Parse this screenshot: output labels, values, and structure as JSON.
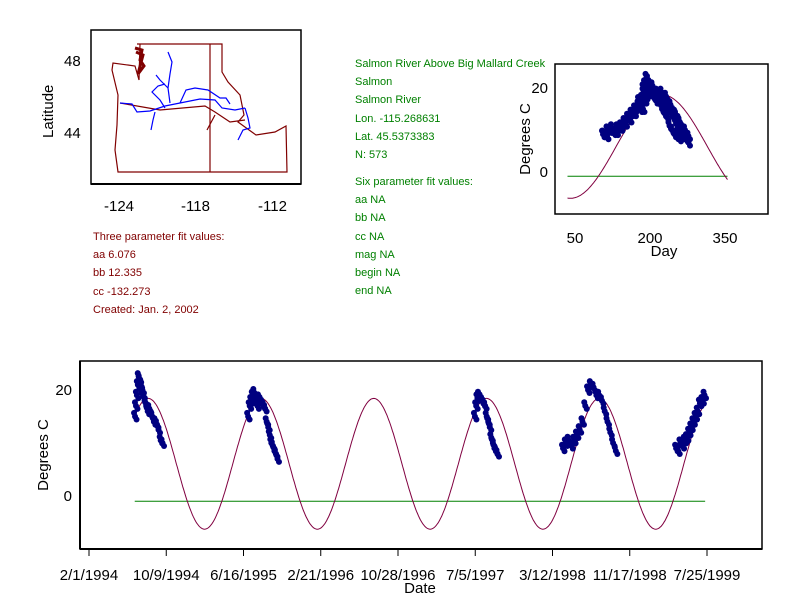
{
  "map": {
    "ylabel": "Latitude",
    "xticks": [
      "-124",
      "-118",
      "-112"
    ],
    "yticks": [
      "48",
      "44"
    ],
    "colors": {
      "border": "#800000",
      "river": "#0000ff"
    }
  },
  "site": {
    "lines": [
      "Salmon River Above Big Mallard Creek",
      "Salmon",
      "Salmon River",
      "Lon. -115.268631",
      "Lat. 45.5373383",
      "N: 573"
    ]
  },
  "six_fit": {
    "title": "Six parameter fit values:",
    "lines": [
      "aa NA",
      "bb NA",
      "cc NA",
      "mag NA",
      "begin NA",
      "end NA"
    ]
  },
  "three_fit": {
    "title": "Three parameter fit values:",
    "lines": [
      "aa 6.076",
      "bb 12.335",
      "cc -132.273",
      "Created:   Jan. 2, 2002"
    ]
  },
  "chart_data": [
    {
      "type": "scatter",
      "name": "day-of-year",
      "xlabel": "Day",
      "ylabel": "Degrees C",
      "xticks": [
        50,
        200,
        350
      ],
      "yticks": [
        0,
        20
      ],
      "xlim": [
        0,
        380
      ],
      "ylim": [
        -10,
        25
      ],
      "fit": {
        "aa": 6.076,
        "bb": 12.335,
        "cc": -132.273
      },
      "reference_line": -1,
      "colors": {
        "points": "#000080",
        "fit": "#800040",
        "reference": "#008000"
      }
    },
    {
      "type": "scatter",
      "name": "time-series",
      "xlabel": "Date",
      "ylabel": "Degrees C",
      "start_day_of_year": 32,
      "xtick_days": [
        0,
        250,
        500,
        750,
        1000,
        1250,
        1500,
        1750,
        2000
      ],
      "xtick_labels": [
        "2/1/1994",
        "10/9/1994",
        "6/16/1995",
        "2/21/1996",
        "10/28/1996",
        "7/5/1997",
        "3/12/1998",
        "11/17/1998",
        "7/25/1999"
      ],
      "yticks": [
        0,
        20
      ],
      "ylim": [
        -10,
        27
      ],
      "fit_range_days": [
        148,
        1994
      ],
      "points": [
        [
          149,
          15
        ],
        [
          152,
          17
        ],
        [
          155,
          19
        ],
        [
          158,
          21
        ],
        [
          161,
          22.5
        ],
        [
          164,
          22
        ],
        [
          167,
          21
        ],
        [
          170,
          19.5
        ],
        [
          173,
          20
        ],
        [
          176,
          19
        ],
        [
          180,
          18
        ],
        [
          185,
          17
        ],
        [
          190,
          16
        ],
        [
          195,
          16.5
        ],
        [
          200,
          15.5
        ],
        [
          205,
          15
        ],
        [
          210,
          14
        ],
        [
          215,
          14
        ],
        [
          220,
          13.5
        ],
        [
          225,
          12.5
        ],
        [
          232,
          10.5
        ],
        [
          238,
          10
        ],
        [
          515,
          15
        ],
        [
          520,
          17
        ],
        [
          525,
          18
        ],
        [
          530,
          19
        ],
        [
          535,
          19.5
        ],
        [
          540,
          18
        ],
        [
          545,
          17
        ],
        [
          550,
          18.5
        ],
        [
          555,
          18
        ],
        [
          560,
          17.5
        ],
        [
          565,
          17
        ],
        [
          570,
          16.5
        ],
        [
          575,
          14
        ],
        [
          580,
          13
        ],
        [
          585,
          11.5
        ],
        [
          590,
          10
        ],
        [
          595,
          9.5
        ],
        [
          600,
          8.5
        ],
        [
          605,
          8
        ],
        [
          610,
          7
        ],
        [
          1249,
          15
        ],
        [
          1253,
          17
        ],
        [
          1257,
          18.5
        ],
        [
          1262,
          19
        ],
        [
          1267,
          18.5
        ],
        [
          1272,
          18
        ],
        [
          1277,
          17.5
        ],
        [
          1282,
          17
        ],
        [
          1287,
          15
        ],
        [
          1292,
          14
        ],
        [
          1297,
          13
        ],
        [
          1302,
          11
        ],
        [
          1307,
          10
        ],
        [
          1312,
          9
        ],
        [
          1317,
          8.5
        ],
        [
          1322,
          8
        ],
        [
          1534,
          9
        ],
        [
          1543,
          10
        ],
        [
          1552,
          10.5
        ],
        [
          1561,
          9.5
        ],
        [
          1570,
          10.5
        ],
        [
          1579,
          11.5
        ],
        [
          1588,
          12.5
        ],
        [
          1597,
          14
        ],
        [
          1606,
          17
        ],
        [
          1615,
          20
        ],
        [
          1624,
          21
        ],
        [
          1633,
          20.5
        ],
        [
          1642,
          19
        ],
        [
          1651,
          19
        ],
        [
          1660,
          18
        ],
        [
          1669,
          16
        ],
        [
          1678,
          14
        ],
        [
          1687,
          12
        ],
        [
          1696,
          10
        ],
        [
          1705,
          8.5
        ],
        [
          1900,
          9
        ],
        [
          1907,
          8.5
        ],
        [
          1914,
          10
        ],
        [
          1921,
          9.5
        ],
        [
          1928,
          10.5
        ],
        [
          1935,
          11
        ],
        [
          1942,
          12
        ],
        [
          1949,
          13
        ],
        [
          1956,
          14
        ],
        [
          1963,
          15
        ],
        [
          1970,
          16
        ],
        [
          1977,
          17.5
        ],
        [
          1985,
          18
        ],
        [
          1992,
          19
        ]
      ]
    }
  ]
}
